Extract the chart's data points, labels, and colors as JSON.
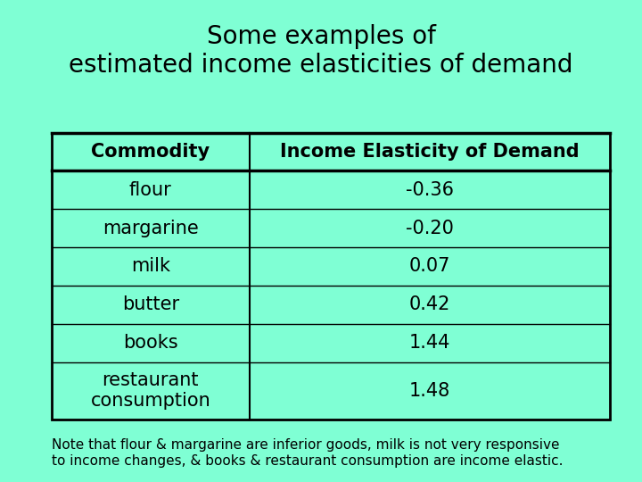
{
  "title": "Some examples of\nestimated income elasticities of demand",
  "title_fontsize": 20,
  "background_color": "#7FFFD4",
  "table_bg_color": "#7FFFD4",
  "header_row": [
    "Commodity",
    "Income Elasticity of Demand"
  ],
  "rows": [
    [
      "flour",
      "-0.36"
    ],
    [
      "margarine",
      "-0.20"
    ],
    [
      "milk",
      "0.07"
    ],
    [
      "butter",
      "0.42"
    ],
    [
      "books",
      "1.44"
    ],
    [
      "restaurant\nconsumption",
      "1.48"
    ]
  ],
  "note": "Note that flour & margarine are inferior goods, milk is not very responsive\nto income changes, & books & restaurant consumption are income elastic.",
  "note_fontsize": 11,
  "header_fontsize": 15,
  "cell_fontsize": 15,
  "text_color": "#000000",
  "border_color": "#000000"
}
